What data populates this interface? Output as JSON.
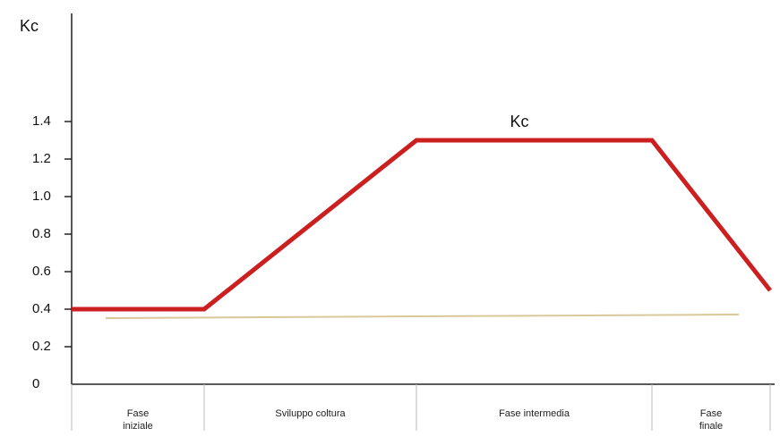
{
  "chart_data": {
    "type": "line",
    "ylabel": "Kc",
    "stages": [
      "Fase iniziale",
      "Sviluppo coltura",
      "Fase intermedia",
      "Fase finale"
    ],
    "series": [
      {
        "name": "Kc",
        "color": "#cc1f1f",
        "values": [
          0.4,
          0.4,
          1.3,
          1.3,
          0.5
        ]
      }
    ],
    "ylim": [
      0,
      1.6
    ],
    "yticks": [
      0,
      0.2,
      0.4,
      0.6,
      0.8,
      {
        "value": 1,
        "label": "1.0"
      },
      1.2,
      1.4
    ]
  }
}
